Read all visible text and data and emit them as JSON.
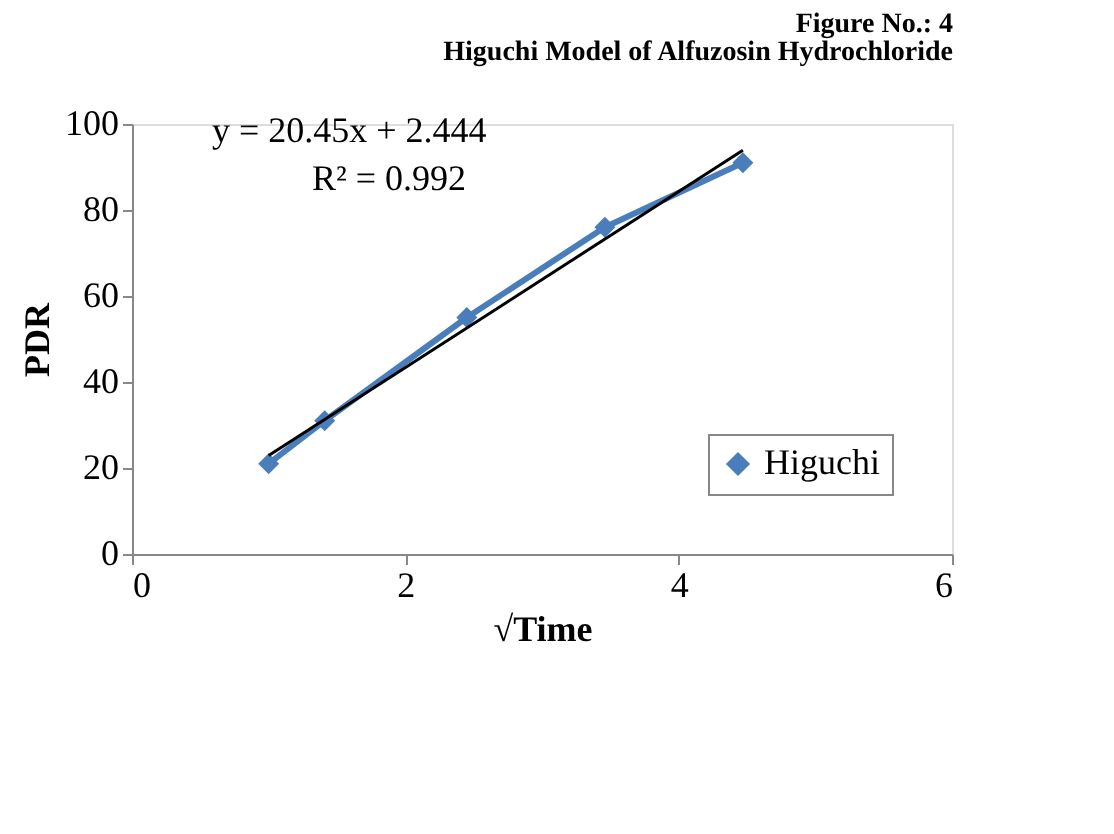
{
  "chart_data": {
    "type": "line",
    "title": "Figure No.: 4",
    "subtitle": "Higuchi Model of Alfuzosin Hydrochloride",
    "xlabel": "√Time",
    "ylabel": "PDR",
    "xlim": [
      0,
      6
    ],
    "xticks": [
      0,
      2,
      4,
      6
    ],
    "ylim": [
      0,
      100
    ],
    "yticks": [
      0,
      20,
      40,
      60,
      80,
      100
    ],
    "grid": false,
    "legend": "bottom right",
    "marker": "diamond",
    "line_style": "solid",
    "series": [
      {
        "name": "Higuchi",
        "color": "#4a7ebb",
        "x": [
          1,
          1.41,
          2.45,
          3.46,
          4.47
        ],
        "values": [
          21,
          31,
          55,
          76,
          91
        ]
      },
      {
        "type": "line",
        "color": "#000000",
        "x": [
          1,
          4.47
        ],
        "values": [
          22.9,
          93.9
        ],
        "marker": "none"
      }
    ],
    "annotations": [
      "y = 20.45x + 2.444",
      "R² = 0.992"
    ]
  }
}
